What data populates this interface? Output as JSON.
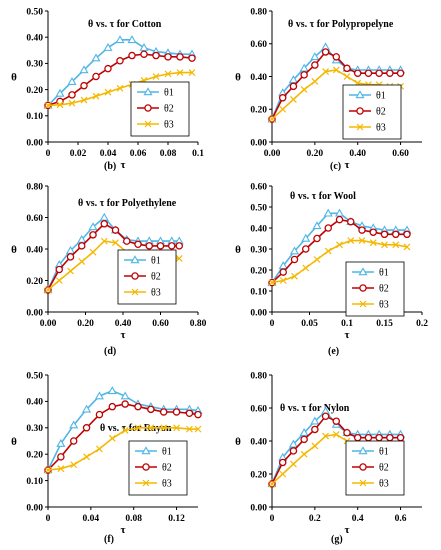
{
  "colors": {
    "theta1": "#4fb5e6",
    "theta2": "#c00000",
    "theta3": "#f5b800"
  },
  "markers": {
    "theta1": "triangle",
    "theta2": "circle",
    "theta3": "x"
  },
  "chart_data": [
    {
      "type": "line",
      "label": "(b)",
      "title": "θ vs. τ for Cotton",
      "xlabel": "τ",
      "ylabel": "θ",
      "xlim": [
        0,
        0.1
      ],
      "ylim": [
        0,
        0.5
      ],
      "xticks": [
        "0",
        "0.02",
        "0.04",
        "0.06",
        "0.08",
        "0.1"
      ],
      "xtick_values": [
        0,
        0.02,
        0.04,
        0.06,
        0.08,
        0.1
      ],
      "yticks": [
        "0.00",
        "0.10",
        "0.20",
        "0.30",
        "0.40",
        "0.50"
      ],
      "ytick_values": [
        0,
        0.1,
        0.2,
        0.3,
        0.4,
        0.5
      ],
      "legend_position": "bottom-right",
      "series": [
        {
          "name": "θ1",
          "x": [
            0,
            0.008,
            0.016,
            0.024,
            0.032,
            0.04,
            0.048,
            0.056,
            0.064,
            0.072,
            0.08,
            0.088,
            0.096
          ],
          "y": [
            0.14,
            0.185,
            0.23,
            0.275,
            0.32,
            0.36,
            0.39,
            0.39,
            0.36,
            0.345,
            0.34,
            0.335,
            0.335
          ]
        },
        {
          "name": "θ2",
          "x": [
            0,
            0.008,
            0.016,
            0.024,
            0.032,
            0.04,
            0.048,
            0.056,
            0.064,
            0.072,
            0.08,
            0.088,
            0.096
          ],
          "y": [
            0.14,
            0.155,
            0.18,
            0.215,
            0.25,
            0.28,
            0.31,
            0.33,
            0.335,
            0.33,
            0.325,
            0.325,
            0.32
          ]
        },
        {
          "name": "θ3",
          "x": [
            0,
            0.008,
            0.016,
            0.024,
            0.032,
            0.04,
            0.048,
            0.056,
            0.064,
            0.072,
            0.08,
            0.088,
            0.096
          ],
          "y": [
            0.14,
            0.142,
            0.148,
            0.16,
            0.175,
            0.19,
            0.205,
            0.22,
            0.235,
            0.25,
            0.26,
            0.265,
            0.265
          ]
        }
      ]
    },
    {
      "type": "line",
      "label": "(c)",
      "title": "θ vs. τ for Polypropelyne",
      "xlabel": "τ",
      "ylabel": "θ",
      "xlim": [
        0,
        0.7
      ],
      "ylim": [
        0,
        0.8
      ],
      "xticks": [
        "0.00",
        "0.20",
        "0.40",
        "0.60"
      ],
      "xtick_values": [
        0,
        0.2,
        0.4,
        0.6
      ],
      "yticks": [
        "0.00",
        "0.20",
        "0.40",
        "0.60",
        "0.80"
      ],
      "ytick_values": [
        0,
        0.2,
        0.4,
        0.6,
        0.8
      ],
      "legend_position": "bottom-right",
      "series": [
        {
          "name": "θ1",
          "x": [
            0,
            0.05,
            0.1,
            0.15,
            0.2,
            0.25,
            0.3,
            0.35,
            0.4,
            0.45,
            0.5,
            0.55,
            0.6
          ],
          "y": [
            0.14,
            0.3,
            0.38,
            0.45,
            0.52,
            0.58,
            0.5,
            0.45,
            0.44,
            0.44,
            0.44,
            0.44,
            0.44
          ]
        },
        {
          "name": "θ2",
          "x": [
            0,
            0.05,
            0.1,
            0.15,
            0.2,
            0.25,
            0.3,
            0.35,
            0.4,
            0.45,
            0.5,
            0.55,
            0.6
          ],
          "y": [
            0.14,
            0.27,
            0.34,
            0.41,
            0.47,
            0.55,
            0.52,
            0.45,
            0.42,
            0.42,
            0.42,
            0.42,
            0.42
          ]
        },
        {
          "name": "θ3",
          "x": [
            0,
            0.05,
            0.1,
            0.15,
            0.2,
            0.25,
            0.3,
            0.35,
            0.4,
            0.45,
            0.5,
            0.55,
            0.6
          ],
          "y": [
            0.14,
            0.2,
            0.26,
            0.32,
            0.37,
            0.43,
            0.44,
            0.4,
            0.36,
            0.35,
            0.35,
            0.34,
            0.34
          ]
        }
      ]
    },
    {
      "type": "line",
      "label": "(d)",
      "title": "θ vs. τ for Polyethylene",
      "xlabel": "τ",
      "ylabel": "θ",
      "xlim": [
        0,
        0.8
      ],
      "ylim": [
        0,
        0.8
      ],
      "xticks": [
        "0.00",
        "0.20",
        "0.40",
        "0.60",
        "0.80"
      ],
      "xtick_values": [
        0,
        0.2,
        0.4,
        0.6,
        0.8
      ],
      "yticks": [
        "0.00",
        "0.20",
        "0.40",
        "0.60",
        "0.80"
      ],
      "ytick_values": [
        0,
        0.2,
        0.4,
        0.6,
        0.8
      ],
      "legend_position": "bottom-right",
      "series": [
        {
          "name": "θ1",
          "x": [
            0,
            0.06,
            0.12,
            0.18,
            0.24,
            0.3,
            0.36,
            0.42,
            0.48,
            0.54,
            0.6,
            0.66,
            0.7
          ],
          "y": [
            0.14,
            0.3,
            0.39,
            0.46,
            0.54,
            0.6,
            0.52,
            0.46,
            0.45,
            0.45,
            0.45,
            0.45,
            0.45
          ]
        },
        {
          "name": "θ2",
          "x": [
            0,
            0.06,
            0.12,
            0.18,
            0.24,
            0.3,
            0.36,
            0.42,
            0.48,
            0.54,
            0.6,
            0.66,
            0.7
          ],
          "y": [
            0.14,
            0.27,
            0.35,
            0.42,
            0.49,
            0.56,
            0.52,
            0.45,
            0.43,
            0.42,
            0.42,
            0.42,
            0.42
          ]
        },
        {
          "name": "θ3",
          "x": [
            0,
            0.06,
            0.12,
            0.18,
            0.24,
            0.3,
            0.36,
            0.42,
            0.48,
            0.54,
            0.6,
            0.66,
            0.7
          ],
          "y": [
            0.14,
            0.2,
            0.26,
            0.32,
            0.38,
            0.45,
            0.44,
            0.38,
            0.35,
            0.35,
            0.34,
            0.34,
            0.34
          ]
        }
      ]
    },
    {
      "type": "line",
      "label": "(e)",
      "title": "θ vs. τ for Wool",
      "xlabel": "τ",
      "ylabel": "θ",
      "xlim": [
        0,
        0.2
      ],
      "ylim": [
        0,
        0.6
      ],
      "xticks": [
        "0",
        "0.05",
        "0.1",
        "0.15",
        "0.2"
      ],
      "xtick_values": [
        0,
        0.05,
        0.1,
        0.15,
        0.2
      ],
      "yticks": [
        "0.00",
        "0.10",
        "0.20",
        "0.30",
        "0.40",
        "0.50",
        "0.60"
      ],
      "ytick_values": [
        0,
        0.1,
        0.2,
        0.3,
        0.4,
        0.5,
        0.6
      ],
      "legend_position": "bottom-right",
      "series": [
        {
          "name": "θ1",
          "x": [
            0,
            0.015,
            0.03,
            0.045,
            0.06,
            0.075,
            0.09,
            0.105,
            0.12,
            0.135,
            0.15,
            0.165,
            0.18
          ],
          "y": [
            0.14,
            0.22,
            0.29,
            0.35,
            0.41,
            0.47,
            0.47,
            0.43,
            0.41,
            0.4,
            0.39,
            0.39,
            0.39
          ]
        },
        {
          "name": "θ2",
          "x": [
            0,
            0.015,
            0.03,
            0.045,
            0.06,
            0.075,
            0.09,
            0.105,
            0.12,
            0.135,
            0.15,
            0.165,
            0.18
          ],
          "y": [
            0.14,
            0.19,
            0.25,
            0.3,
            0.35,
            0.4,
            0.44,
            0.43,
            0.39,
            0.38,
            0.37,
            0.37,
            0.37
          ]
        },
        {
          "name": "θ3",
          "x": [
            0,
            0.015,
            0.03,
            0.045,
            0.06,
            0.075,
            0.09,
            0.105,
            0.12,
            0.135,
            0.15,
            0.165,
            0.18
          ],
          "y": [
            0.14,
            0.15,
            0.17,
            0.21,
            0.25,
            0.29,
            0.32,
            0.34,
            0.34,
            0.33,
            0.32,
            0.32,
            0.31
          ]
        }
      ]
    },
    {
      "type": "line",
      "label": "(f)",
      "title": "θ vs. τ for Rayon",
      "xlabel": "τ",
      "ylabel": "θ",
      "xlim": [
        0,
        0.14
      ],
      "ylim": [
        0,
        0.5
      ],
      "xticks": [
        "0",
        "0.04",
        "0.08",
        "0.12"
      ],
      "xtick_values": [
        0,
        0.04,
        0.08,
        0.12
      ],
      "yticks": [
        "0.00",
        "0.10",
        "0.20",
        "0.30",
        "0.40",
        "0.50"
      ],
      "ytick_values": [
        0,
        0.1,
        0.2,
        0.3,
        0.4,
        0.5
      ],
      "legend_position": "bottom-right",
      "series": [
        {
          "name": "θ1",
          "x": [
            0,
            0.012,
            0.024,
            0.036,
            0.048,
            0.06,
            0.072,
            0.084,
            0.096,
            0.108,
            0.12,
            0.132,
            0.14
          ],
          "y": [
            0.14,
            0.24,
            0.31,
            0.37,
            0.42,
            0.44,
            0.42,
            0.39,
            0.38,
            0.37,
            0.37,
            0.37,
            0.365
          ]
        },
        {
          "name": "θ2",
          "x": [
            0,
            0.012,
            0.024,
            0.036,
            0.048,
            0.06,
            0.072,
            0.084,
            0.096,
            0.108,
            0.12,
            0.132,
            0.14
          ],
          "y": [
            0.14,
            0.19,
            0.25,
            0.3,
            0.35,
            0.38,
            0.39,
            0.38,
            0.37,
            0.36,
            0.36,
            0.355,
            0.35
          ]
        },
        {
          "name": "θ3",
          "x": [
            0,
            0.012,
            0.024,
            0.036,
            0.048,
            0.06,
            0.072,
            0.084,
            0.096,
            0.108,
            0.12,
            0.132,
            0.14
          ],
          "y": [
            0.14,
            0.145,
            0.16,
            0.19,
            0.22,
            0.26,
            0.29,
            0.3,
            0.3,
            0.3,
            0.3,
            0.295,
            0.295
          ]
        }
      ]
    },
    {
      "type": "line",
      "label": "(g)",
      "title": "θ vs. τ for Nylon",
      "xlabel": "τ",
      "ylabel": "θ",
      "xlim": [
        0,
        0.7
      ],
      "ylim": [
        0,
        0.8
      ],
      "xticks": [
        "0",
        "0.2",
        "0.4",
        "0.6"
      ],
      "xtick_values": [
        0,
        0.2,
        0.4,
        0.6
      ],
      "yticks": [
        "0.00",
        "0.20",
        "0.40",
        "0.60",
        "0.80"
      ],
      "ytick_values": [
        0,
        0.2,
        0.4,
        0.6,
        0.8
      ],
      "legend_position": "bottom-right",
      "series": [
        {
          "name": "θ1",
          "x": [
            0,
            0.05,
            0.1,
            0.15,
            0.2,
            0.25,
            0.3,
            0.35,
            0.4,
            0.45,
            0.5,
            0.55,
            0.6
          ],
          "y": [
            0.14,
            0.3,
            0.38,
            0.45,
            0.52,
            0.58,
            0.5,
            0.45,
            0.44,
            0.44,
            0.44,
            0.44,
            0.44
          ]
        },
        {
          "name": "θ2",
          "x": [
            0,
            0.05,
            0.1,
            0.15,
            0.2,
            0.25,
            0.3,
            0.35,
            0.4,
            0.45,
            0.5,
            0.55,
            0.6
          ],
          "y": [
            0.14,
            0.27,
            0.34,
            0.41,
            0.47,
            0.55,
            0.52,
            0.45,
            0.42,
            0.42,
            0.42,
            0.42,
            0.42
          ]
        },
        {
          "name": "θ3",
          "x": [
            0,
            0.05,
            0.1,
            0.15,
            0.2,
            0.25,
            0.3,
            0.35,
            0.4,
            0.45,
            0.5,
            0.55,
            0.6
          ],
          "y": [
            0.14,
            0.2,
            0.26,
            0.32,
            0.37,
            0.43,
            0.44,
            0.4,
            0.36,
            0.35,
            0.35,
            0.34,
            0.34
          ]
        }
      ]
    }
  ]
}
